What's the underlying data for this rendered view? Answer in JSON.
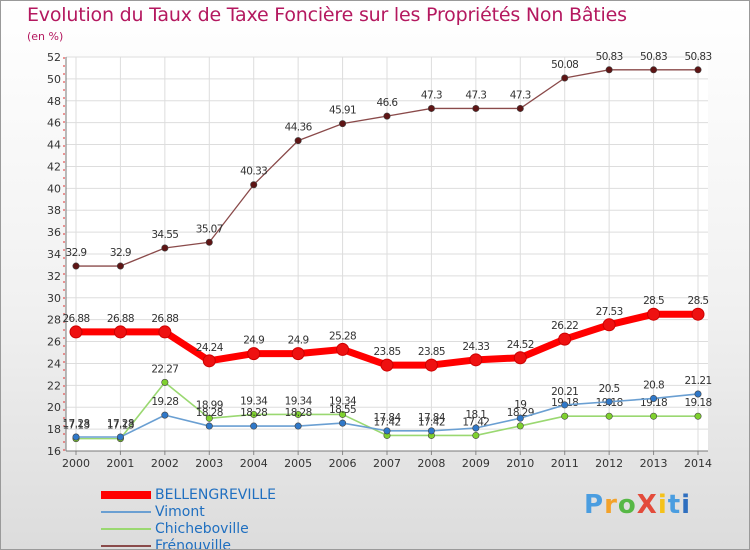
{
  "chart_data": {
    "type": "line",
    "title": "Evolution du Taux de Taxe Foncière sur les Propriétés Non Bâties",
    "ylabel": "(en %)",
    "x": [
      "2000",
      "2001",
      "2002",
      "2003",
      "2004",
      "2005",
      "2006",
      "2007",
      "2008",
      "2009",
      "2010",
      "2011",
      "2012",
      "2013",
      "2014"
    ],
    "ylim": [
      16,
      52
    ],
    "yticks": [
      16,
      18,
      20,
      22,
      24,
      26,
      28,
      30,
      32,
      34,
      36,
      38,
      40,
      42,
      44,
      46,
      48,
      50,
      52
    ],
    "series": [
      {
        "name": "BELLENGREVILLE",
        "color": "#ff0000",
        "marker": "#ee1111",
        "values": [
          26.88,
          26.88,
          26.88,
          24.24,
          24.9,
          24.9,
          25.28,
          23.85,
          23.85,
          24.33,
          24.52,
          26.22,
          27.53,
          28.5,
          28.5
        ],
        "labels": [
          "26.88",
          "26.88",
          "26.88",
          "24.24",
          "24.9",
          "24.9",
          "25.28",
          "23.85",
          "23.85",
          "24.33",
          "24.52",
          "26.22",
          "27.53",
          "28.5",
          "28.5"
        ]
      },
      {
        "name": "Vimont",
        "color": "#6a9fd2",
        "marker": "#2f78c9",
        "values": [
          17.28,
          17.28,
          19.28,
          18.28,
          18.28,
          18.28,
          18.55,
          17.84,
          17.84,
          18.1,
          19,
          20.21,
          20.5,
          20.8,
          21.21
        ],
        "labels": [
          "17.28",
          "17.28",
          "19.28",
          "18.28",
          "18.28",
          "18.28",
          "18.55",
          "17.84",
          "17.84",
          "18.1",
          "19",
          "20.21",
          "20.5",
          "20.8",
          "21.21"
        ]
      },
      {
        "name": "Chicheboville",
        "color": "#9ad871",
        "marker": "#7fd12e",
        "values": [
          17.13,
          17.13,
          22.27,
          18.99,
          19.34,
          19.34,
          19.34,
          17.42,
          17.42,
          17.42,
          18.29,
          19.18,
          19.18,
          19.18,
          19.18
        ],
        "labels": [
          "17.13",
          "17.13",
          "22.27",
          "18.99",
          "19.34",
          "19.34",
          "19.34",
          "17.42",
          "17.42",
          "17.42",
          "18.29",
          "19.18",
          "19.18",
          "19.18",
          "19.18"
        ]
      },
      {
        "name": "Frénouville",
        "color": "#8a4a4a",
        "marker": "#5e1515",
        "values": [
          32.9,
          32.9,
          34.55,
          35.07,
          40.33,
          44.36,
          45.91,
          46.6,
          47.3,
          47.3,
          47.3,
          50.08,
          50.83,
          50.83,
          50.83
        ],
        "labels": [
          "32.9",
          "32.9",
          "34.55",
          "35.07",
          "40.33",
          "44.36",
          "45.91",
          "46.6",
          "47.3",
          "47.3",
          "47.3",
          "50.08",
          "50.83",
          "50.83",
          "50.83"
        ]
      }
    ]
  },
  "logo": {
    "text": "ProXiti",
    "colors": [
      "#4a9de0",
      "#f3a22a",
      "#57b846",
      "#e34b3b",
      "#f5c21a",
      "#4a9de0",
      "#2f6fbf"
    ]
  }
}
